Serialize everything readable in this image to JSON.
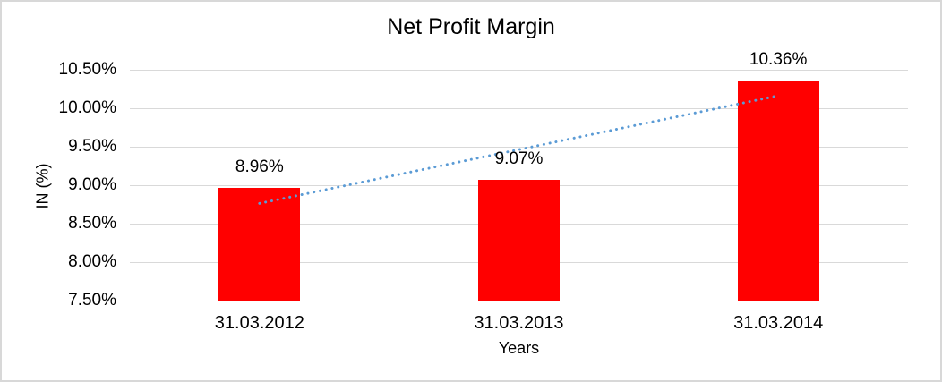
{
  "chart_data": {
    "type": "bar",
    "title": "Net Profit Margin",
    "xlabel": "Years",
    "ylabel": "IN (%)",
    "categories": [
      "31.03.2012",
      "31.03.2013",
      "31.03.2014"
    ],
    "values": [
      8.96,
      9.07,
      10.36
    ],
    "data_labels": [
      "8.96%",
      "9.07%",
      "10.36%"
    ],
    "y_ticks": [
      "10.50%",
      "10.00%",
      "9.50%",
      "9.00%",
      "8.50%",
      "8.00%",
      "7.50%"
    ],
    "ylim": [
      7.5,
      10.5
    ],
    "y_step": 0.5,
    "grid": true,
    "legend": "none",
    "bar_color": "#ff0000",
    "gridline_color": "#d9d9d9",
    "axis_line_color": "#bfbfbf",
    "text_color": "#000000",
    "frame_color": "#d8d8d8",
    "trendline": {
      "type": "linear",
      "style": "dotted",
      "color": "#5b9bd5"
    }
  }
}
